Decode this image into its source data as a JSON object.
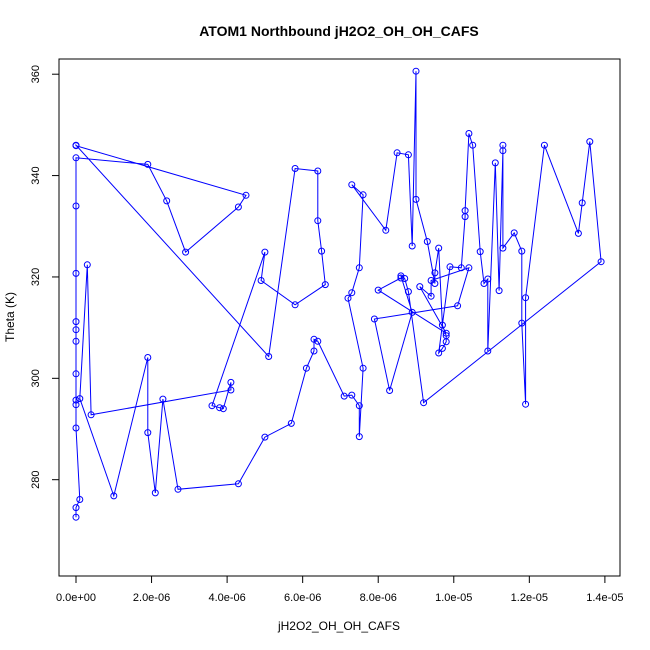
{
  "chart_data": {
    "type": "scatter",
    "title": "ATOM1 Northbound jH2O2_OH_OH_CAFS",
    "xlabel": "jH2O2_OH_OH_CAFS",
    "ylabel": "Theta (K)",
    "xlim": [
      -4.5e-07,
      1.44e-05
    ],
    "ylim": [
      261,
      363
    ],
    "x_ticks": [
      0,
      2e-06,
      4e-06,
      6e-06,
      8e-06,
      1e-05,
      1.2e-05,
      1.4e-05
    ],
    "x_tick_labels": [
      "0.0e+00",
      "2.0e-06",
      "4.0e-06",
      "6.0e-06",
      "8.0e-06",
      "1.0e-05",
      "1.2e-05",
      "1.4e-05"
    ],
    "y_ticks": [
      280,
      300,
      320,
      340,
      360
    ],
    "y_tick_labels": [
      "280",
      "300",
      "320",
      "340",
      "360"
    ],
    "grid": false,
    "series_color": "#0000ff",
    "marker": "open-circle",
    "connected": true,
    "points": [
      [
        0.0,
        272.6
      ],
      [
        0.0,
        274.5
      ],
      [
        1e-07,
        276.1
      ],
      [
        0.0,
        290.2
      ],
      [
        0.0,
        294.8
      ],
      [
        0.0,
        295.7
      ],
      [
        0.0,
        300.9
      ],
      [
        0.0,
        307.3
      ],
      [
        0.0,
        309.6
      ],
      [
        0.0,
        311.2
      ],
      [
        0.0,
        320.7
      ],
      [
        0.0,
        334.0
      ],
      [
        0.0,
        343.5
      ],
      [
        0.0,
        345.9
      ],
      [
        1.9e-06,
        342.2
      ],
      [
        2.4e-06,
        335.0
      ],
      [
        2.9e-06,
        324.9
      ],
      [
        4.3e-06,
        333.8
      ],
      [
        4.5e-06,
        336.1
      ],
      [
        0.0,
        346.0
      ],
      [
        5.8e-06,
        341.4
      ],
      [
        5.1e-06,
        304.3
      ],
      [
        6.4e-06,
        340.9
      ],
      [
        6.4e-06,
        331.1
      ],
      [
        6.5e-06,
        325.1
      ],
      [
        6.6e-06,
        318.5
      ],
      [
        5.8e-06,
        314.5
      ],
      [
        4.9e-06,
        319.3
      ],
      [
        5e-06,
        324.9
      ],
      [
        3.6e-06,
        294.6
      ],
      [
        3.8e-06,
        294.2
      ],
      [
        3.9e-06,
        294.0
      ],
      [
        4.1e-06,
        299.2
      ],
      [
        4.1e-06,
        297.7
      ],
      [
        4e-07,
        292.8
      ],
      [
        3e-07,
        322.4
      ],
      [
        1e-07,
        296.0
      ],
      [
        1e-06,
        276.8
      ],
      [
        1.9e-06,
        304.1
      ],
      [
        1.9e-06,
        289.3
      ],
      [
        2.1e-06,
        277.4
      ],
      [
        2.3e-06,
        295.9
      ],
      [
        2.7e-06,
        278.1
      ],
      [
        4.3e-06,
        279.2
      ],
      [
        5e-06,
        288.4
      ],
      [
        5.7e-06,
        291.1
      ],
      [
        6.1e-06,
        302.0
      ],
      [
        6.3e-06,
        305.4
      ],
      [
        6.3e-06,
        307.7
      ],
      [
        6.4e-06,
        307.3
      ],
      [
        7.1e-06,
        296.5
      ],
      [
        7.3e-06,
        296.7
      ],
      [
        7.5e-06,
        294.6
      ],
      [
        7.5e-06,
        288.5
      ],
      [
        7.6e-06,
        302.0
      ],
      [
        7.2e-06,
        315.8
      ],
      [
        7.3e-06,
        316.9
      ],
      [
        7.5e-06,
        321.8
      ],
      [
        7.6e-06,
        336.2
      ],
      [
        7.3e-06,
        338.2
      ],
      [
        8.2e-06,
        329.2
      ],
      [
        8.5e-06,
        344.5
      ],
      [
        8.8e-06,
        344.1
      ],
      [
        8.9e-06,
        326.1
      ],
      [
        9e-06,
        360.6
      ],
      [
        9e-06,
        335.3
      ],
      [
        9.3e-06,
        327.0
      ],
      [
        9.5e-06,
        318.7
      ],
      [
        9.5e-06,
        320.8
      ],
      [
        9.6e-06,
        325.7
      ],
      [
        9.7e-06,
        310.5
      ],
      [
        9.8e-06,
        308.4
      ],
      [
        9.8e-06,
        307.2
      ],
      [
        9.7e-06,
        305.9
      ],
      [
        9.6e-06,
        305.0
      ],
      [
        9.9e-06,
        322.0
      ],
      [
        1.02e-05,
        321.8
      ],
      [
        1.03e-05,
        331.9
      ],
      [
        1.03e-05,
        333.1
      ],
      [
        1.04e-05,
        348.3
      ],
      [
        1.05e-05,
        346.0
      ],
      [
        1.07e-05,
        325.0
      ],
      [
        1.08e-05,
        318.7
      ],
      [
        1.09e-05,
        319.6
      ],
      [
        1.09e-05,
        305.4
      ],
      [
        1.11e-05,
        342.5
      ],
      [
        1.12e-05,
        317.3
      ],
      [
        1.13e-05,
        344.9
      ],
      [
        1.13e-05,
        346.0
      ],
      [
        1.13e-05,
        325.7
      ],
      [
        1.16e-05,
        328.7
      ],
      [
        1.18e-05,
        325.1
      ],
      [
        1.18e-05,
        310.9
      ],
      [
        1.19e-05,
        294.9
      ],
      [
        1.19e-05,
        315.9
      ],
      [
        1.24e-05,
        346.0
      ],
      [
        1.33e-05,
        328.6
      ],
      [
        1.34e-05,
        334.6
      ],
      [
        1.36e-05,
        346.7
      ],
      [
        1.39e-05,
        323.0
      ],
      [
        9.2e-06,
        295.2
      ],
      [
        8.8e-06,
        317.1
      ],
      [
        8.7e-06,
        319.7
      ],
      [
        8.6e-06,
        320.2
      ],
      [
        8.9e-06,
        313.0
      ],
      [
        8.3e-06,
        297.6
      ],
      [
        7.9e-06,
        311.7
      ],
      [
        1.01e-05,
        314.3
      ],
      [
        1.04e-05,
        321.8
      ],
      [
        9.4e-06,
        319.3
      ],
      [
        9.4e-06,
        316.2
      ],
      [
        9.1e-06,
        318.1
      ],
      [
        9.8e-06,
        308.9
      ],
      [
        8e-06,
        317.4
      ],
      [
        8.6e-06,
        319.8
      ]
    ],
    "path_order": [
      0,
      1,
      2,
      3,
      4,
      5,
      6,
      7,
      8,
      9,
      10,
      11,
      12,
      14,
      15,
      16,
      17,
      18,
      13,
      19,
      21,
      20,
      22,
      23,
      24,
      25,
      26,
      27,
      28,
      29,
      30,
      31,
      32,
      33,
      34,
      35,
      36,
      37,
      38,
      39,
      40,
      41,
      42,
      43,
      44,
      45,
      46,
      47,
      48,
      49,
      50,
      51,
      52,
      53,
      54,
      55,
      56,
      57,
      58,
      59,
      60,
      61,
      62,
      63,
      64,
      65,
      66,
      67,
      68,
      69,
      70,
      71,
      72,
      73,
      74,
      75,
      76,
      77,
      78,
      79,
      80,
      81,
      82,
      83,
      84,
      85,
      86,
      87,
      88,
      89,
      90,
      91,
      92,
      93,
      94,
      95,
      96,
      97,
      98,
      99,
      100,
      101,
      102,
      103,
      104,
      105,
      106,
      107,
      108,
      109,
      110,
      111,
      112,
      113,
      114
    ]
  }
}
